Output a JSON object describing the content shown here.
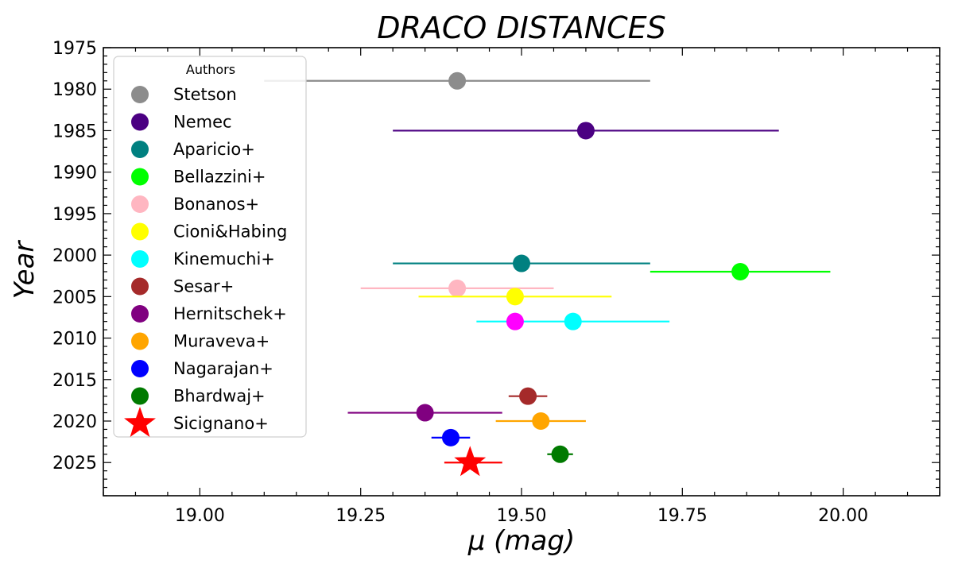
{
  "chart_data": {
    "type": "scatter",
    "title": "DRACO DISTANCES",
    "xlabel": "μ (mag)",
    "ylabel": "Year",
    "xlim": [
      18.85,
      20.15
    ],
    "ylim": [
      1975,
      2029
    ],
    "y_inverted": true,
    "x_ticks": [
      "19.00",
      "19.25",
      "19.50",
      "19.75",
      "20.00"
    ],
    "x_tick_values": [
      19.0,
      19.25,
      19.5,
      19.75,
      20.0
    ],
    "y_ticks": [
      1975,
      1980,
      1985,
      1990,
      1995,
      2000,
      2005,
      2010,
      2015,
      2020,
      2025
    ],
    "grid": false,
    "legend_title": "Authors",
    "legend_position": "upper-left",
    "series": [
      {
        "name": "Stetson",
        "color": "#8c8c8c",
        "marker": "circle",
        "points": [
          {
            "x": 19.4,
            "y": 1979,
            "xerr": [
              19.1,
              19.7
            ]
          }
        ]
      },
      {
        "name": "Nemec",
        "color": "#4b0082",
        "marker": "circle",
        "points": [
          {
            "x": 19.6,
            "y": 1985,
            "xerr": [
              19.3,
              19.9
            ]
          }
        ]
      },
      {
        "name": "Aparicio+",
        "color": "#008080",
        "marker": "circle",
        "points": [
          {
            "x": 19.5,
            "y": 2001,
            "xerr": [
              19.3,
              19.7
            ]
          }
        ]
      },
      {
        "name": "Bellazzini+",
        "color": "#00ff00",
        "marker": "circle",
        "points": [
          {
            "x": 19.84,
            "y": 2002,
            "xerr": [
              19.7,
              19.98
            ]
          }
        ]
      },
      {
        "name": "Bonanos+",
        "color": "#ffb6c1",
        "marker": "circle",
        "points": [
          {
            "x": 19.4,
            "y": 2004,
            "xerr": [
              19.25,
              19.55
            ]
          }
        ]
      },
      {
        "name": "Cioni&Habing",
        "color": "#ffff00",
        "marker": "circle",
        "points": [
          {
            "x": 19.49,
            "y": 2005,
            "xerr": [
              19.34,
              19.64
            ]
          }
        ]
      },
      {
        "name": "Kinemuchi+",
        "color": "#00ffff",
        "marker": "circle",
        "points": [
          {
            "x": 19.58,
            "y": 2008,
            "xerr": [
              19.43,
              19.73
            ]
          }
        ]
      },
      {
        "name": "Sesar+",
        "color": "#a52a2a",
        "marker": "circle",
        "points": [
          {
            "x": 19.51,
            "y": 2017,
            "xerr": [
              19.48,
              19.54
            ]
          }
        ]
      },
      {
        "name": "Hernitschek+",
        "color": "#800080",
        "marker": "circle",
        "points": [
          {
            "x": 19.35,
            "y": 2019,
            "xerr": [
              19.23,
              19.47
            ]
          }
        ]
      },
      {
        "name": "Muraveva+",
        "color": "#ffa500",
        "marker": "circle",
        "points": [
          {
            "x": 19.53,
            "y": 2020,
            "xerr": [
              19.46,
              19.6
            ]
          }
        ]
      },
      {
        "name": "Nagarajan+",
        "color": "#0000ff",
        "marker": "circle",
        "points": [
          {
            "x": 19.39,
            "y": 2022,
            "xerr": [
              19.36,
              19.42
            ]
          }
        ]
      },
      {
        "name": "Bhardwaj+",
        "color": "#007a00",
        "marker": "circle",
        "points": [
          {
            "x": 19.56,
            "y": 2024,
            "xerr": [
              19.54,
              19.58
            ]
          }
        ]
      },
      {
        "name": "Sicignano+",
        "color": "#ff0000",
        "marker": "star",
        "points": [
          {
            "x": 19.42,
            "y": 2025,
            "xerr": [
              19.38,
              19.47
            ]
          }
        ]
      }
    ],
    "extra_points": [
      {
        "x": 19.49,
        "y": 2008,
        "color": "#ff00ff",
        "marker": "circle"
      }
    ]
  }
}
